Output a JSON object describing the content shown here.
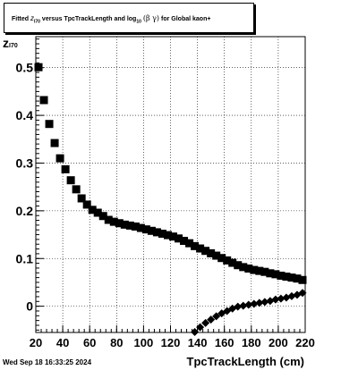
{
  "title": {
    "prefix": "Fitted",
    "z": "z",
    "z_sub": "I70",
    "middle": "versus TpcTrackLength and log",
    "log_sub": "10",
    "greek": "(β  γ)",
    "suffix": "for Global kaon+"
  },
  "xaxis_title": "TpcTrackLength (cm)",
  "yaxis_title": {
    "main": "z",
    "sub": "I70"
  },
  "timestamp": "Wed Sep 18 16:33:25 2024",
  "chart_data": {
    "type": "scatter",
    "xlim": [
      20,
      220
    ],
    "ylim": [
      -0.055,
      0.565
    ],
    "grid": true,
    "x_ticks": [
      20,
      40,
      60,
      80,
      100,
      120,
      140,
      160,
      180,
      200,
      220
    ],
    "y_ticks": [
      0,
      0.1,
      0.2,
      0.3,
      0.4,
      0.5
    ],
    "y_tick_labels": [
      "0",
      "0.1",
      "0.2",
      "0.3",
      "0.4",
      "0.5"
    ],
    "series": [
      {
        "marker": "square",
        "color": "#000000",
        "points": [
          [
            22,
            0.501
          ],
          [
            26,
            0.432
          ],
          [
            30,
            0.382
          ],
          [
            34,
            0.342
          ],
          [
            38,
            0.31
          ],
          [
            42,
            0.287
          ],
          [
            46,
            0.264
          ],
          [
            50,
            0.245
          ],
          [
            54,
            0.226
          ],
          [
            58,
            0.213
          ],
          [
            62,
            0.202
          ],
          [
            66,
            0.196
          ],
          [
            70,
            0.189
          ],
          [
            74,
            0.181
          ],
          [
            78,
            0.177
          ],
          [
            82,
            0.174
          ],
          [
            86,
            0.171
          ],
          [
            90,
            0.169
          ],
          [
            94,
            0.167
          ],
          [
            98,
            0.164
          ],
          [
            102,
            0.161
          ],
          [
            106,
            0.158
          ],
          [
            110,
            0.155
          ],
          [
            114,
            0.152
          ],
          [
            118,
            0.149
          ],
          [
            122,
            0.146
          ],
          [
            126,
            0.142
          ],
          [
            130,
            0.137
          ],
          [
            134,
            0.132
          ],
          [
            138,
            0.126
          ],
          [
            142,
            0.121
          ],
          [
            146,
            0.116
          ],
          [
            150,
            0.111
          ],
          [
            154,
            0.106
          ],
          [
            158,
            0.101
          ],
          [
            162,
            0.096
          ],
          [
            166,
            0.091
          ],
          [
            170,
            0.086
          ],
          [
            174,
            0.082
          ],
          [
            178,
            0.079
          ],
          [
            182,
            0.076
          ],
          [
            186,
            0.074
          ],
          [
            190,
            0.072
          ],
          [
            194,
            0.069
          ],
          [
            198,
            0.067
          ],
          [
            202,
            0.064
          ],
          [
            206,
            0.062
          ],
          [
            210,
            0.06
          ],
          [
            214,
            0.058
          ],
          [
            218,
            0.055
          ]
        ]
      },
      {
        "marker": "diamond",
        "color": "#000000",
        "points": [
          [
            138,
            -0.054
          ],
          [
            142,
            -0.044
          ],
          [
            146,
            -0.035
          ],
          [
            150,
            -0.028
          ],
          [
            154,
            -0.021
          ],
          [
            158,
            -0.015
          ],
          [
            162,
            -0.01
          ],
          [
            166,
            -0.005
          ],
          [
            170,
            -0.001
          ],
          [
            174,
            0.001
          ],
          [
            178,
            0.003
          ],
          [
            182,
            0.005
          ],
          [
            186,
            0.007
          ],
          [
            190,
            0.009
          ],
          [
            194,
            0.011
          ],
          [
            198,
            0.014
          ],
          [
            202,
            0.016
          ],
          [
            206,
            0.018
          ],
          [
            210,
            0.021
          ],
          [
            214,
            0.024
          ],
          [
            218,
            0.028
          ]
        ]
      }
    ]
  }
}
